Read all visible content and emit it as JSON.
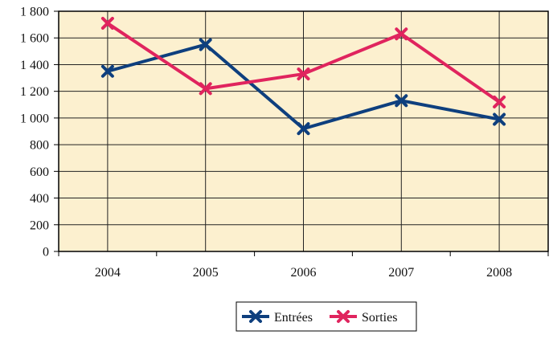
{
  "chart_data": {
    "type": "line",
    "categories": [
      "2004",
      "2005",
      "2006",
      "2007",
      "2008"
    ],
    "series": [
      {
        "name": "Entrées",
        "color": "#0e3f7e",
        "values": [
          1350,
          1550,
          920,
          1130,
          990
        ]
      },
      {
        "name": "Sorties",
        "color": "#e0245e",
        "values": [
          1710,
          1220,
          1330,
          1630,
          1120
        ]
      }
    ],
    "y_ticks": [
      "0",
      "200",
      "400",
      "600",
      "800",
      "1 000",
      "1 200",
      "1 400",
      "1 600",
      "1 800"
    ],
    "ylim": [
      0,
      1800
    ],
    "plot_background": "#fcf0cf",
    "grid": "horizontal and vertical",
    "legend_position": "bottom-center",
    "marker": "x-cross"
  }
}
